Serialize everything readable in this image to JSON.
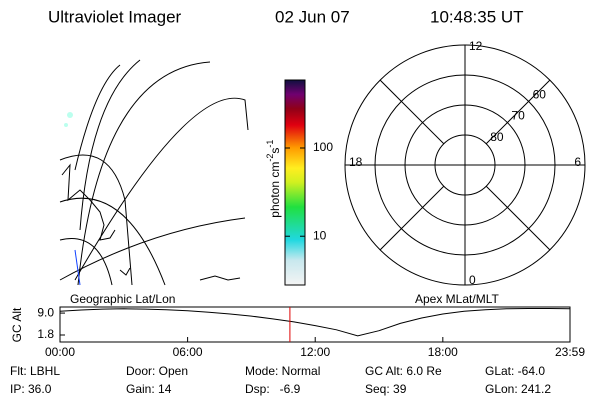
{
  "header": {
    "title": "Ultraviolet Imager",
    "date": "02 Jun 07",
    "time": "10:48:35 UT"
  },
  "map": {
    "label": "Geographic Lat/Lon"
  },
  "colorbar": {
    "label": [
      "photon cm",
      "-2",
      "s",
      "-1"
    ],
    "lim": [
      2.8,
      590
    ],
    "log": true,
    "ticks": [
      10,
      100
    ]
  },
  "polar": {
    "label": "Apex MLat/MLT",
    "rlim": [
      50,
      90
    ],
    "lat_rings": [
      60,
      70,
      80
    ],
    "mlt": [
      "12",
      "18",
      "6",
      "0"
    ]
  },
  "altitude": {
    "ylabel": "GC Alt",
    "ylim": [
      -0.5,
      11
    ],
    "yticks": [
      {
        "value": 9,
        "label": "9.0"
      },
      1.8
    ],
    "xlim": [
      0,
      23.98
    ],
    "xticks": [
      {
        "value": 0,
        "label": "00:00"
      },
      {
        "value": 6,
        "label": "06:00"
      },
      {
        "value": 12,
        "label": "12:00"
      },
      {
        "value": 18,
        "label": "18:00"
      },
      {
        "value": 23.98,
        "label": "23:59"
      }
    ],
    "x": [
      0,
      1,
      2,
      3,
      4,
      5,
      6,
      7,
      8,
      9,
      10,
      11,
      12,
      13,
      14,
      15,
      16,
      17,
      18,
      19,
      20,
      21,
      22,
      23,
      23.98
    ],
    "values": [
      9.6,
      10.0,
      10.3,
      10.4,
      10.3,
      10.1,
      9.8,
      9.3,
      8.7,
      8.0,
      7.1,
      6.1,
      4.9,
      3.5,
      1.5,
      3.2,
      5.6,
      7.4,
      8.7,
      9.6,
      10.1,
      10.4,
      10.5,
      10.5,
      10.4
    ],
    "current_time": 10.81,
    "color": "#000000",
    "marker_color": "#e00000"
  },
  "info": [
    [
      "Flt: LBHL",
      "Door: Open",
      "Mode: Normal",
      "GC Alt: 6.0 Re",
      "GLat: -64.0"
    ],
    [
      "IP: 36.0",
      "Gain: 14",
      "Dsp:   -6.9",
      "Seq: 39",
      "GLon: 241.2"
    ]
  ]
}
